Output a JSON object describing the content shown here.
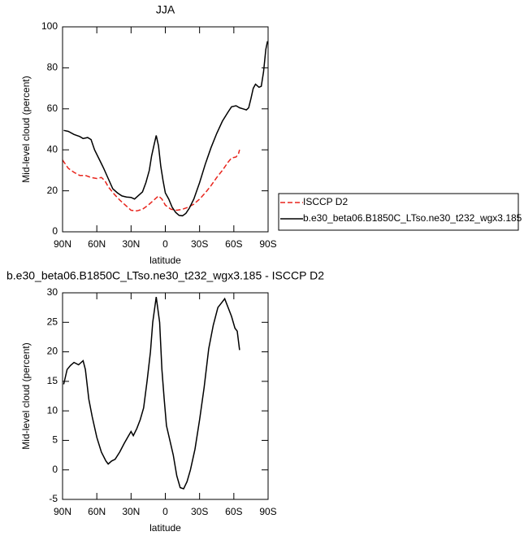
{
  "chart_data": [
    {
      "type": "line",
      "title": "JJA",
      "xlabel": "latitude",
      "ylabel": "Mid-level cloud (percent)",
      "xlim": [
        90,
        -90
      ],
      "xticks": [
        {
          "value": 90,
          "label": "90N"
        },
        {
          "value": 60,
          "label": "60N"
        },
        {
          "value": 30,
          "label": "30N"
        },
        0,
        {
          "value": -30,
          "label": "30S"
        },
        {
          "value": -60,
          "label": "60S"
        },
        {
          "value": -90,
          "label": "90S"
        }
      ],
      "ylim": [
        0,
        100
      ],
      "yticks": [
        0,
        20,
        40,
        60,
        80,
        100
      ],
      "series": [
        {
          "name": "ISCCP D2",
          "color": "#e8241c",
          "dash": true,
          "x": [
            90,
            85,
            80,
            75,
            70,
            65,
            60,
            56,
            53,
            50,
            45,
            40,
            35,
            30,
            25,
            20,
            15,
            10,
            6,
            3,
            0,
            -5,
            -10,
            -15,
            -20,
            -25,
            -30,
            -35,
            -40,
            -45,
            -50,
            -55,
            -58,
            -62,
            -64,
            -65
          ],
          "values": [
            35,
            31,
            29,
            27.5,
            27.5,
            26.5,
            26,
            26.5,
            25,
            22,
            18.5,
            15.5,
            13,
            10.5,
            10.2,
            11,
            13,
            15.5,
            17.5,
            16,
            13,
            11,
            10.5,
            11,
            12,
            13.5,
            16,
            19,
            22.5,
            26.5,
            30,
            34,
            36,
            36.5,
            38,
            40
          ]
        },
        {
          "name": "b.e30_beta06.B1850C_LTso.ne30_t232_wgx3.185",
          "color": "#000000",
          "dash": false,
          "x": [
            89,
            85,
            80,
            75,
            72,
            68,
            65,
            62,
            58,
            54,
            50,
            46,
            42,
            38,
            34,
            30,
            27,
            24,
            20,
            17,
            14,
            12,
            10,
            8,
            6,
            4,
            2,
            0,
            -3,
            -6,
            -9,
            -12,
            -15,
            -18,
            -21,
            -25,
            -30,
            -35,
            -40,
            -45,
            -50,
            -55,
            -58,
            -62,
            -65,
            -68,
            -71,
            -73,
            -75,
            -77,
            -79,
            -82,
            -84,
            -86,
            -88,
            -89.5
          ],
          "values": [
            49.5,
            49,
            47.5,
            46.5,
            45.5,
            46,
            45,
            40,
            35.5,
            31,
            26,
            21,
            19,
            17.5,
            17,
            16.8,
            16,
            17.5,
            19.5,
            24,
            30,
            37,
            42,
            47,
            42,
            32,
            25,
            19,
            16,
            12,
            9.5,
            8,
            7.8,
            9,
            11.5,
            16,
            24,
            33,
            41,
            48,
            54,
            58.5,
            61,
            61.5,
            60.5,
            60,
            59.5,
            60.5,
            65,
            70,
            72,
            70.5,
            71,
            78,
            89,
            93
          ]
        }
      ]
    },
    {
      "type": "line",
      "title": "b.e30_beta06.B1850C_LTso.ne30_t232_wgx3.185 - ISCCP D2",
      "xlabel": "latitude",
      "ylabel": "Mid-level cloud (percent)",
      "xlim": [
        90,
        -90
      ],
      "xticks": [
        {
          "value": 90,
          "label": "90N"
        },
        {
          "value": 60,
          "label": "60N"
        },
        {
          "value": 30,
          "label": "30N"
        },
        0,
        {
          "value": -30,
          "label": "30S"
        },
        {
          "value": -60,
          "label": "60S"
        },
        {
          "value": -90,
          "label": "90S"
        }
      ],
      "ylim": [
        -5,
        30
      ],
      "yticks": [
        -5,
        0,
        5,
        10,
        15,
        20,
        25,
        30
      ],
      "series": [
        {
          "color": "#000000",
          "dash": false,
          "x": [
            89,
            86,
            83,
            80,
            76,
            72,
            70,
            67,
            64,
            60,
            56,
            52,
            50,
            47,
            44,
            40,
            36,
            33,
            30,
            28,
            25,
            22,
            19,
            16,
            13,
            11,
            8,
            5,
            3,
            1,
            -1,
            -4,
            -7,
            -10,
            -13,
            -16,
            -19,
            -22,
            -26,
            -30,
            -34,
            -38,
            -42,
            -46,
            -50,
            -52,
            -55,
            -58,
            -61,
            -63,
            -65
          ],
          "values": [
            14.5,
            17,
            17.7,
            18.2,
            17.8,
            18.5,
            17,
            12,
            9,
            5.5,
            3,
            1.5,
            1,
            1.5,
            1.8,
            3,
            4.5,
            5.5,
            6.5,
            5.8,
            7,
            8.5,
            10.5,
            15,
            20,
            25,
            29.3,
            25,
            17,
            12,
            7.5,
            5,
            2.5,
            -1,
            -3,
            -3.2,
            -2,
            0,
            3.5,
            8.5,
            14,
            20.5,
            24.5,
            27.5,
            28.5,
            29,
            27.5,
            26,
            24,
            23.5,
            20.3
          ]
        }
      ]
    }
  ]
}
